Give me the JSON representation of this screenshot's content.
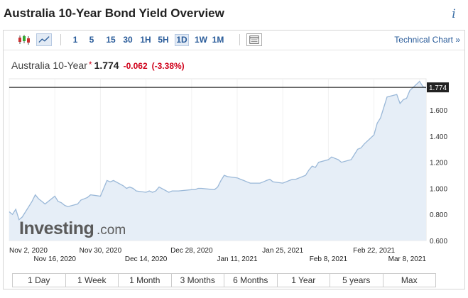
{
  "page": {
    "title": "Australia 10-Year Bond Yield Overview",
    "info_icon": "i"
  },
  "toolbar": {
    "icons": [
      "candlestick-icon",
      "area-chart-icon",
      "table-icon"
    ],
    "timeframes": [
      "1",
      "5",
      "15",
      "30",
      "1H",
      "5H",
      "1D",
      "1W",
      "1M"
    ],
    "active_timeframe": "1D",
    "technical_link": "Technical Chart »"
  },
  "quote": {
    "name": "Australia 10-Year",
    "star": "*",
    "price": "1.774",
    "change": "-0.062",
    "change_pct": "(-3.38%)"
  },
  "colors": {
    "accent": "#2a5c9a",
    "negative": "#d0021b",
    "line": "#9ab8d8",
    "fill": "#e6eef7"
  },
  "chart_data": {
    "type": "area",
    "current_value_label": "1.774",
    "y_ticks": [
      "1.600",
      "1.400",
      "1.200",
      "1.000",
      "0.800",
      "0.600"
    ],
    "ylim": [
      0.6,
      1.84
    ],
    "x_tick_labels_upper": [
      "Nov 2, 2020",
      "Nov 30, 2020",
      "Dec 28, 2020",
      "Jan 25, 2021",
      "Feb 22, 2021"
    ],
    "x_tick_labels_lower": [
      "Nov 16, 2020",
      "Dec 14, 2020",
      "Jan 11, 2021",
      "Feb 8, 2021",
      "Mar 8, 2021"
    ],
    "x_tick_dates_upper": [
      "2020-11-02",
      "2020-11-30",
      "2020-12-28",
      "2021-01-25",
      "2021-02-22"
    ],
    "x_tick_dates_lower": [
      "2020-11-16",
      "2020-12-14",
      "2021-01-11",
      "2021-02-08",
      "2021-03-08"
    ],
    "x": [
      "2020-11-02",
      "2020-11-03",
      "2020-11-04",
      "2020-11-05",
      "2020-11-06",
      "2020-11-09",
      "2020-11-10",
      "2020-11-11",
      "2020-11-12",
      "2020-11-13",
      "2020-11-16",
      "2020-11-17",
      "2020-11-18",
      "2020-11-19",
      "2020-11-20",
      "2020-11-23",
      "2020-11-24",
      "2020-11-25",
      "2020-11-26",
      "2020-11-27",
      "2020-11-30",
      "2020-12-01",
      "2020-12-02",
      "2020-12-03",
      "2020-12-04",
      "2020-12-07",
      "2020-12-08",
      "2020-12-09",
      "2020-12-10",
      "2020-12-11",
      "2020-12-14",
      "2020-12-15",
      "2020-12-16",
      "2020-12-17",
      "2020-12-18",
      "2020-12-21",
      "2020-12-22",
      "2020-12-23",
      "2020-12-24",
      "2020-12-28",
      "2020-12-29",
      "2020-12-30",
      "2020-12-31",
      "2021-01-04",
      "2021-01-05",
      "2021-01-06",
      "2021-01-07",
      "2021-01-08",
      "2021-01-11",
      "2021-01-12",
      "2021-01-13",
      "2021-01-14",
      "2021-01-15",
      "2021-01-18",
      "2021-01-19",
      "2021-01-20",
      "2021-01-21",
      "2021-01-22",
      "2021-01-25",
      "2021-01-27",
      "2021-01-28",
      "2021-01-29",
      "2021-02-01",
      "2021-02-02",
      "2021-02-03",
      "2021-02-04",
      "2021-02-05",
      "2021-02-08",
      "2021-02-09",
      "2021-02-10",
      "2021-02-11",
      "2021-02-12",
      "2021-02-15",
      "2021-02-16",
      "2021-02-17",
      "2021-02-18",
      "2021-02-19",
      "2021-02-22",
      "2021-02-23",
      "2021-02-24",
      "2021-02-25",
      "2021-02-26",
      "2021-03-01",
      "2021-03-02",
      "2021-03-03",
      "2021-03-04",
      "2021-03-05",
      "2021-03-08",
      "2021-03-09",
      "2021-03-10"
    ],
    "values": [
      0.82,
      0.8,
      0.84,
      0.76,
      0.78,
      0.9,
      0.95,
      0.92,
      0.9,
      0.88,
      0.94,
      0.9,
      0.89,
      0.87,
      0.86,
      0.88,
      0.91,
      0.92,
      0.93,
      0.95,
      0.94,
      1.0,
      1.06,
      1.05,
      1.06,
      1.02,
      1.0,
      1.01,
      1.0,
      0.98,
      0.97,
      0.98,
      0.97,
      0.98,
      1.01,
      0.97,
      0.98,
      0.98,
      0.98,
      0.99,
      0.99,
      1.0,
      1.0,
      0.99,
      1.01,
      1.06,
      1.1,
      1.09,
      1.08,
      1.07,
      1.06,
      1.05,
      1.04,
      1.04,
      1.05,
      1.06,
      1.07,
      1.05,
      1.04,
      1.06,
      1.07,
      1.07,
      1.1,
      1.14,
      1.17,
      1.16,
      1.2,
      1.22,
      1.24,
      1.23,
      1.22,
      1.2,
      1.22,
      1.26,
      1.3,
      1.31,
      1.34,
      1.41,
      1.5,
      1.54,
      1.62,
      1.7,
      1.72,
      1.65,
      1.68,
      1.69,
      1.75,
      1.82,
      1.78,
      1.77
    ]
  },
  "watermark": {
    "brand": "Investing",
    "suffix": ".com"
  },
  "range_buttons": [
    "1 Day",
    "1 Week",
    "1 Month",
    "3 Months",
    "6 Months",
    "1 Year",
    "5 years",
    "Max"
  ]
}
